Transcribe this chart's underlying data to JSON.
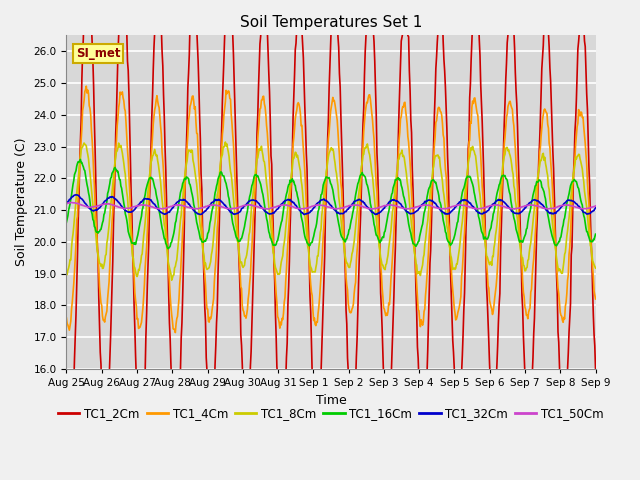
{
  "title": "Soil Temperatures Set 1",
  "xlabel": "Time",
  "ylabel": "Soil Temperature (C)",
  "ylim": [
    16.0,
    26.5
  ],
  "yticks": [
    16.0,
    17.0,
    18.0,
    19.0,
    20.0,
    21.0,
    22.0,
    23.0,
    24.0,
    25.0,
    26.0
  ],
  "xtick_labels": [
    "Aug 25",
    "Aug 26",
    "Aug 27",
    "Aug 28",
    "Aug 29",
    "Aug 30",
    "Aug 31",
    "Sep 1",
    "Sep 2",
    "Sep 3",
    "Sep 4",
    "Sep 5",
    "Sep 6",
    "Sep 7",
    "Sep 8",
    "Sep 9"
  ],
  "n_days": 15,
  "pts_per_day": 48,
  "series_colors": [
    "#cc0000",
    "#ff9900",
    "#cccc00",
    "#00cc00",
    "#0000cc",
    "#cc44cc"
  ],
  "series_labels": [
    "TC1_2Cm",
    "TC1_4Cm",
    "TC1_8Cm",
    "TC1_16Cm",
    "TC1_32Cm",
    "TC1_50Cm"
  ],
  "legend_label": "SI_met",
  "background_color": "#d8d8d8",
  "grid_color": "#ffffff",
  "title_fontsize": 11,
  "axis_label_fontsize": 9,
  "tick_fontsize": 7.5,
  "legend_fontsize": 8.5
}
